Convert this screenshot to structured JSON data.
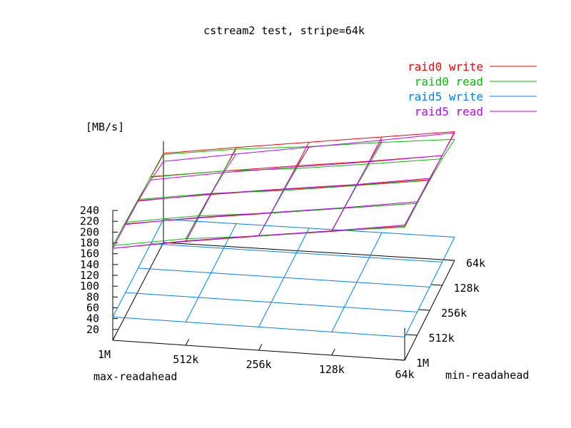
{
  "chart_data": {
    "type": "surface3d",
    "title": "cstream2 test, stripe=64k",
    "zlabel": "[MB/s]",
    "xlabel": "max-readahead",
    "ylabel": "min-readahead",
    "x_ticks": [
      "1M",
      "512k",
      "256k",
      "128k",
      "64k"
    ],
    "y_ticks": [
      "1M",
      "512k",
      "256k",
      "128k",
      "64k"
    ],
    "z_ticks": [
      20,
      40,
      60,
      80,
      100,
      120,
      140,
      160,
      180,
      200,
      220,
      240
    ],
    "zlim": [
      0,
      240
    ],
    "grid": true,
    "legend_position": "top-right",
    "series": [
      {
        "name": "raid0 write",
        "color": "#ff0000",
        "values": [
          [
            170,
            192,
            211,
            229,
            248
          ],
          [
            170,
            190,
            208,
            226,
            244
          ],
          [
            168,
            188,
            206,
            223,
            242
          ],
          [
            167,
            186,
            204,
            221,
            240
          ],
          [
            165,
            184,
            202,
            220,
            238
          ]
        ]
      },
      {
        "name": "raid0 read",
        "color": "#00c000",
        "values": [
          [
            175,
            197,
            211,
            230,
            246
          ],
          [
            173,
            194,
            208,
            226,
            244
          ],
          [
            170,
            190,
            204,
            222,
            240
          ],
          [
            166,
            186,
            199,
            216,
            234
          ],
          [
            163,
            181,
            194,
            210,
            224
          ]
        ]
      },
      {
        "name": "raid5 write",
        "color": "#0080ff",
        "values": [
          [
            43,
            43,
            43,
            43,
            43
          ],
          [
            43,
            43,
            43,
            43,
            43
          ],
          [
            43,
            43,
            43,
            43,
            43
          ],
          [
            43,
            43,
            43,
            43,
            43
          ],
          [
            43,
            43,
            43,
            43,
            43
          ]
        ]
      },
      {
        "name": "raid5 read",
        "color": "#c000ff",
        "values": [
          [
            170,
            193,
            212,
            230,
            250
          ],
          [
            169,
            191,
            209,
            227,
            247
          ],
          [
            167,
            189,
            207,
            224,
            244
          ],
          [
            161,
            183,
            202,
            220,
            240
          ],
          [
            150,
            172,
            193,
            214,
            236
          ]
        ]
      }
    ]
  }
}
